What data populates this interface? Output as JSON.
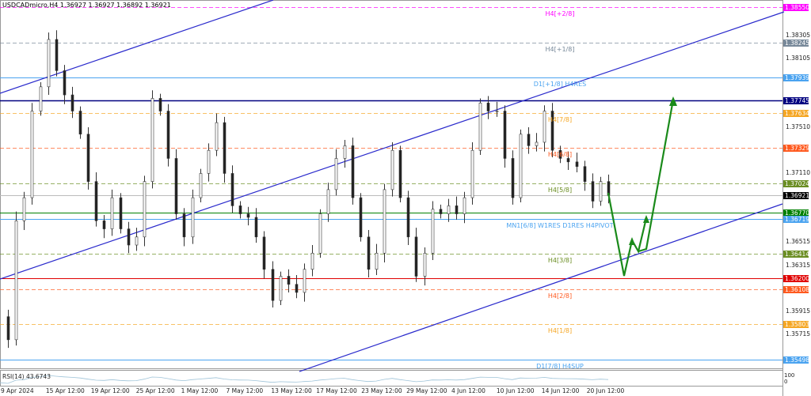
{
  "header": {
    "symbol_info": "USDCADmicro,H4  1.36927 1.36927 1.36892 1.36921"
  },
  "chart_data": {
    "type": "candlestick",
    "symbol": "USDCADmicro",
    "timeframe": "H4",
    "ylim": [
      1.3543,
      1.3868
    ],
    "grid": false,
    "last_price": 1.36921,
    "closes": [
      1.3587,
      1.3567,
      1.367,
      1.369,
      1.3765,
      1.3786,
      1.3827,
      1.38,
      1.3779,
      1.3765,
      1.3745,
      1.3704,
      1.367,
      1.3663,
      1.369,
      1.3663,
      1.3649,
      1.3656,
      1.3704,
      1.3776,
      1.3765,
      1.3724,
      1.3676,
      1.3656,
      1.369,
      1.3711,
      1.3731,
      1.3755,
      1.3711,
      1.3683,
      1.3676,
      1.3673,
      1.3656,
      1.3628,
      1.3601,
      1.3622,
      1.3615,
      1.3608,
      1.3628,
      1.3642,
      1.3676,
      1.3697,
      1.3724,
      1.3735,
      1.369,
      1.3656,
      1.3628,
      1.3642,
      1.3697,
      1.3731,
      1.369,
      1.3656,
      1.3622,
      1.3642,
      1.368,
      1.3676,
      1.3683,
      1.3676,
      1.369,
      1.3731,
      1.3772,
      1.3765,
      1.3765,
      1.3724,
      1.369,
      1.3745,
      1.3735,
      1.3738,
      1.3765,
      1.3731,
      1.3724,
      1.3721,
      1.3717,
      1.3704,
      1.3687,
      1.3704,
      1.36921
    ],
    "x_tick_labels": [
      "9 Apr 2024",
      "15 Apr 12:00",
      "19 Apr 12:00",
      "25 Apr 12:00",
      "1 May 12:00",
      "7 May 12:00",
      "13 May 12:00",
      "17 May 12:00",
      "23 May 12:00",
      "29 May 12:00",
      "4 Jun 12:00",
      "10 Jun 12:00",
      "14 Jun 12:00",
      "20 Jun 12:00"
    ],
    "y_tick_labels": [
      "1.38305",
      "1.38105",
      "1.37510",
      "1.37110",
      "1.36515",
      "1.36315",
      "1.35915",
      "1.35715"
    ],
    "levels": [
      {
        "price": 1.3855,
        "text": "1.38550",
        "label": "H4[+2/8]",
        "color": "#ff00ff",
        "style": "dashed"
      },
      {
        "price": 1.38245,
        "text": "1.38245",
        "label": "H4[+1/8]",
        "color": "#778899",
        "style": "dashed"
      },
      {
        "price": 1.37939,
        "text": "1.37939",
        "label": "D1[+1/8] H4RES",
        "color": "#4aa3f0",
        "style": "solid"
      },
      {
        "price": 1.37745,
        "text": "1.37745",
        "label": "",
        "color": "#000080",
        "style": "thick"
      },
      {
        "price": 1.37634,
        "text": "1.37634",
        "label": "H4[7/8]",
        "color": "#f5a623",
        "style": "dashed"
      },
      {
        "price": 1.37329,
        "text": "1.37329",
        "label": "H4[6/8]",
        "color": "#ff5a1f",
        "style": "dashed"
      },
      {
        "price": 1.37024,
        "text": "1.37024",
        "label": "H4[5/8]",
        "color": "#6b8e23",
        "style": "dashed"
      },
      {
        "price": 1.36921,
        "text": "1.36921",
        "label": "",
        "color": "#000000",
        "style": "bid"
      },
      {
        "price": 1.3677,
        "text": "1.36770",
        "label": "",
        "color": "#008000",
        "style": "solid"
      },
      {
        "price": 1.36719,
        "text": "1.36719",
        "label": "MN1[6/8] W1RES D1RES H4PIVOT",
        "color": "#4aa3f0",
        "style": "solid"
      },
      {
        "price": 1.36414,
        "text": "1.36414",
        "label": "H4[3/8]",
        "color": "#6b8e23",
        "style": "dashed"
      },
      {
        "price": 1.362,
        "text": "1.36200",
        "label": "",
        "color": "#e00000",
        "style": "solid"
      },
      {
        "price": 1.36108,
        "text": "1.36108",
        "label": "H4[2/8]",
        "color": "#ff5a1f",
        "style": "dashed"
      },
      {
        "price": 1.35803,
        "text": "1.35803",
        "label": "H4[1/8]",
        "color": "#f5a623",
        "style": "dashed"
      },
      {
        "price": 1.35498,
        "text": "1.35498",
        "label": "D1[7/8] H4SUP",
        "color": "#4aa3f0",
        "style": "solid"
      }
    ],
    "channel_color": "#2a2acc",
    "forecast_arrow_color": "#1a8a1a"
  },
  "rsi": {
    "label": "RSI(14) 43.6743",
    "scale_top": "100",
    "scale_bottom": "0"
  }
}
